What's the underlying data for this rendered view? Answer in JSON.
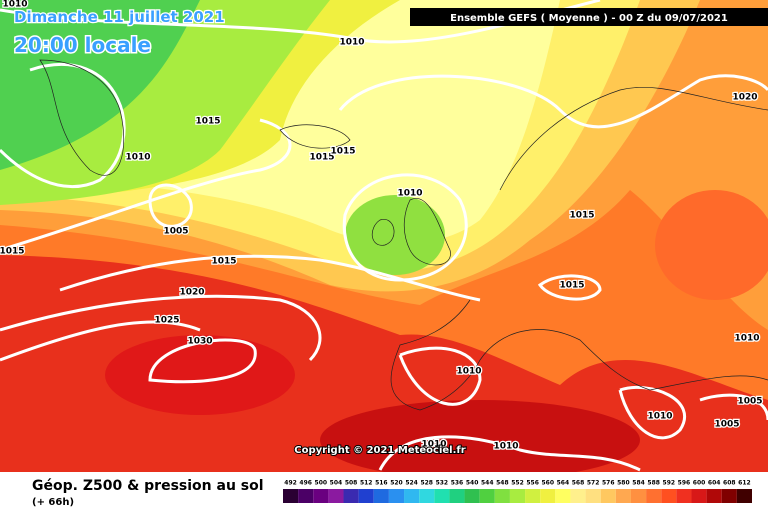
{
  "header": {
    "date": "Dimanche 11 juillet 2021",
    "time": "20:00 locale",
    "run": "Ensemble GEFS  ( Moyenne )  - 00 Z du 09/07/2021"
  },
  "isobars": {
    "labels": [
      "1010",
      "1010",
      "1020",
      "1015",
      "1010",
      "1015",
      "1015",
      "1010",
      "1015",
      "1005",
      "1015",
      "1015",
      "1020",
      "1015",
      "1025",
      "1030",
      "1010",
      "1010",
      "1010",
      "1005",
      "1005",
      "1010",
      "1010"
    ]
  },
  "copyright": "Copyright © 2021 Meteociel.fr",
  "legend": {
    "title": "Géop. Z500 & pression au sol",
    "subtitle": "(+ 66h)",
    "values": [
      492,
      496,
      500,
      504,
      508,
      512,
      516,
      520,
      524,
      528,
      532,
      536,
      540,
      544,
      548,
      552,
      556,
      560,
      564,
      568,
      572,
      576,
      580,
      584,
      588,
      592,
      596,
      600,
      604,
      608,
      612
    ],
    "colors": [
      "#2a0033",
      "#4b0066",
      "#6a0080",
      "#8b1aa0",
      "#3a2ab0",
      "#2040d0",
      "#1f6ae0",
      "#2a90f0",
      "#30b8f0",
      "#30d8e0",
      "#20e0b0",
      "#20d080",
      "#30c050",
      "#50d040",
      "#80e040",
      "#a8ec40",
      "#d0f040",
      "#f0f040",
      "#ffff60",
      "#fff08c",
      "#ffe080",
      "#ffc860",
      "#ffa850",
      "#ff9040",
      "#ff7030",
      "#ff5020",
      "#f03020",
      "#d81818",
      "#b00808",
      "#800000",
      "#400000"
    ]
  }
}
